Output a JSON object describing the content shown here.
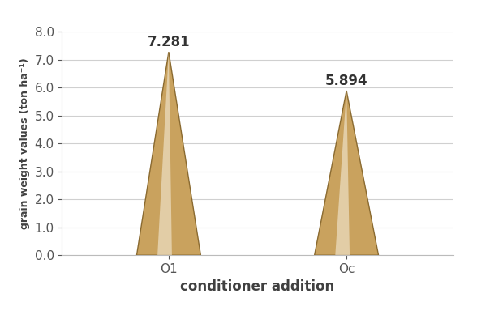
{
  "chart_data": {
    "type": "bar",
    "categories": [
      "O1",
      "Oc"
    ],
    "values": [
      7.281,
      5.894
    ],
    "color": "#c9a25e",
    "x_label": "conditioner addition",
    "y_label": "grain weight values (ton ha⁻¹)",
    "ylim": [
      0,
      8
    ],
    "yticks": [
      {
        "value": 0,
        "label": "0.0"
      },
      {
        "value": 1,
        "label": "1.0"
      },
      {
        "value": 2,
        "label": "2.0"
      },
      {
        "value": 3,
        "label": "3.0"
      },
      {
        "value": 4,
        "label": "4.0"
      },
      {
        "value": 5,
        "label": "5.0"
      },
      {
        "value": 6,
        "label": "6.0"
      },
      {
        "value": 7,
        "label": "7.0"
      },
      {
        "value": 8,
        "label": "8.0"
      }
    ],
    "grid": true,
    "data_labels": true
  }
}
